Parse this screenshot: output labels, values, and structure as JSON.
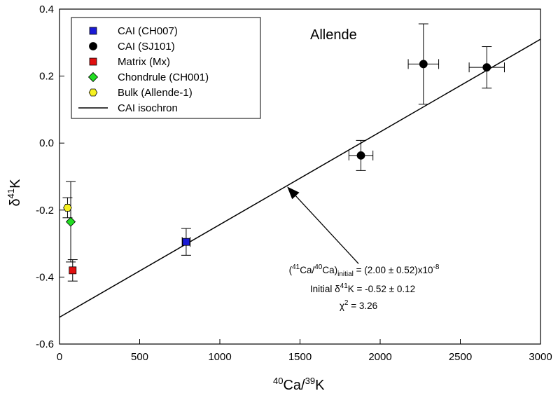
{
  "chart_data": {
    "type": "scatter",
    "title": "Allende",
    "xlabel": {
      "sup": "40",
      "base": "Ca/",
      "sup2": "39",
      "base2": "K"
    },
    "ylabel": {
      "base": "δ",
      "sup": "41",
      "base2": "K"
    },
    "xlim": [
      0,
      3000
    ],
    "ylim": [
      -0.6,
      0.4
    ],
    "xticks": [
      "0",
      "500",
      "1000",
      "1500",
      "2000",
      "2500",
      "3000"
    ],
    "xtick_values": [
      0,
      500,
      1000,
      1500,
      2000,
      2500,
      3000
    ],
    "yticks": [
      "0.4",
      "0.2",
      "0.0",
      "-0.2",
      "-0.4",
      "-0.6"
    ],
    "ytick_values": [
      0.4,
      0.2,
      0.0,
      -0.2,
      -0.4,
      -0.6
    ],
    "grid": false,
    "legend_position": "top-left",
    "series": [
      {
        "name": "CAI (CH007)",
        "marker": "square",
        "color": "#1a1ad6",
        "points": [
          {
            "x": 790,
            "y": -0.295,
            "xerr": 25,
            "yerr": 0.04
          }
        ]
      },
      {
        "name": "CAI (SJ101)",
        "marker": "circle",
        "color": "#000000",
        "points": [
          {
            "x": 1880,
            "y": -0.037,
            "xerr": 75,
            "yerr": 0.045
          },
          {
            "x": 2270,
            "y": 0.236,
            "xerr": 95,
            "yerr": 0.12
          },
          {
            "x": 2665,
            "y": 0.226,
            "xerr": 110,
            "yerr": 0.062
          }
        ]
      },
      {
        "name": "Matrix (Mx)",
        "marker": "square",
        "color": "#e01010",
        "points": [
          {
            "x": 82,
            "y": -0.38,
            "xerr": 0,
            "yerr": 0.032
          }
        ]
      },
      {
        "name": "Chondrule (CH001)",
        "marker": "diamond",
        "color": "#22dd22",
        "points": [
          {
            "x": 70,
            "y": -0.235,
            "xerr": 0,
            "yerr": 0.12
          }
        ]
      },
      {
        "name": "Bulk (Allende-1)",
        "marker": "hexagon",
        "color": "#f5f020",
        "points": [
          {
            "x": 50,
            "y": -0.193,
            "xerr": 0,
            "yerr": 0.03
          }
        ]
      },
      {
        "name": "CAI isochron",
        "marker": "line",
        "color": "#000000",
        "line": {
          "x": [
            0,
            3000
          ],
          "y": [
            -0.52,
            0.31
          ]
        }
      }
    ],
    "annotation": {
      "line1": {
        "a": "(",
        "s1": "41",
        "b": "Ca/",
        "s2": "40",
        "c": "Ca)",
        "sub": "initial",
        "d": " = (2.00 ± 0.52)x10",
        "s3": "-8"
      },
      "line2": {
        "a": "Initial δ",
        "s1": "41",
        "b": "K = -0.52 ± 0.12"
      },
      "line3": {
        "a": "χ",
        "s1": "2",
        "b": " = 3.26"
      },
      "arrow_from": {
        "x": 1865,
        "y": -0.36
      },
      "arrow_to": {
        "x": 1420,
        "y": -0.13
      }
    }
  }
}
